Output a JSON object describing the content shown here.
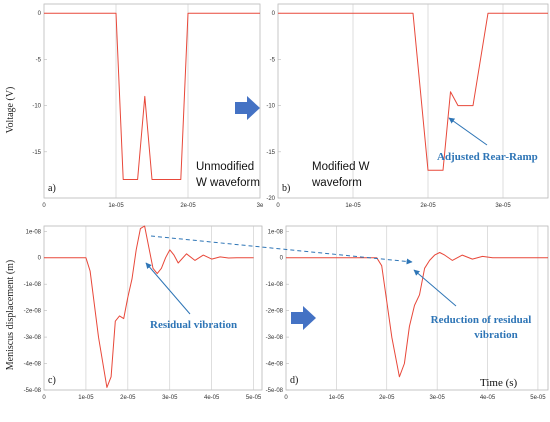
{
  "figure": {
    "y_label_top": "Voltage (V)",
    "y_label_bottom": "Meniscus displacement (m)",
    "time_label": "Time (s)",
    "colors": {
      "curve": "#e8483a",
      "accent": "#2e75b6",
      "frame": "#b8b8b8"
    }
  },
  "chart_data": [
    {
      "id": "a",
      "type": "line",
      "panel_label": "a)",
      "annotation_lines": [
        "Unmodified",
        "W waveform"
      ],
      "xlim": [
        0,
        3e-05
      ],
      "ylim": [
        -20,
        1
      ],
      "x_ticks": [
        "0",
        "1e-05",
        "2e-05",
        "3e"
      ],
      "y_ticks": [
        "0",
        "-5",
        "-10",
        "-15"
      ],
      "series": [
        {
          "x": [
            0,
            1e-05,
            1.1e-05,
            1.3e-05,
            1.4e-05,
            1.5e-05,
            1.6e-05,
            1.7e-05,
            1.9e-05,
            2e-05,
            3e-05
          ],
          "y": [
            0,
            0,
            -18,
            -18,
            -9,
            -18,
            -18,
            -18,
            -18,
            0,
            0
          ]
        }
      ]
    },
    {
      "id": "b",
      "type": "line",
      "panel_label": "b)",
      "annotation_lines": [
        "Modified W",
        "waveform"
      ],
      "blue_annotation": "Adjusted Rear-Ramp",
      "xlim": [
        0,
        3.6e-05
      ],
      "ylim": [
        -20,
        1
      ],
      "x_ticks": [
        "0",
        "1e-05",
        "2e-05",
        "3e-05"
      ],
      "y_ticks": [
        "0",
        "-5",
        "-10",
        "-15",
        "-20"
      ],
      "series": [
        {
          "x": [
            0,
            1.8e-05,
            2e-05,
            2.2e-05,
            2.3e-05,
            2.4e-05,
            2.6e-05,
            2.8e-05,
            3.6e-05
          ],
          "y": [
            0,
            0,
            -17,
            -17,
            -8.5,
            -10,
            -10,
            0,
            0
          ]
        }
      ]
    },
    {
      "id": "c",
      "type": "line",
      "panel_label": "c)",
      "blue_annotation": "Residual vibration",
      "xlim": [
        0,
        5.2e-05
      ],
      "ylim": [
        -5e-08,
        1.2e-08
      ],
      "x_ticks": [
        "0",
        "1e-05",
        "2e-05",
        "3e-05",
        "4e-05",
        "5e-05"
      ],
      "y_ticks": [
        "1e-08",
        "0",
        "-1e-08",
        "-2e-08",
        "-3e-08",
        "-4e-08",
        "-5e-08"
      ],
      "series": [
        {
          "x": [
            0,
            1e-05,
            1.1e-05,
            1.3e-05,
            1.5e-05,
            1.6e-05,
            1.7e-05,
            1.8e-05,
            1.9e-05,
            2e-05,
            2.1e-05,
            2.2e-05,
            2.3e-05,
            2.4e-05,
            2.5e-05,
            2.6e-05,
            2.7e-05,
            2.8e-05,
            2.9e-05,
            3e-05,
            3.1e-05,
            3.2e-05,
            3.4e-05,
            3.6e-05,
            3.8e-05,
            4e-05,
            4.2e-05,
            4.4e-05,
            4.6e-05,
            4.8e-05,
            5e-05
          ],
          "y": [
            0,
            0,
            -5e-09,
            -3e-08,
            -4.9e-08,
            -4.5e-08,
            -2.4e-08,
            -2.2e-08,
            -2.3e-08,
            -1.5e-08,
            -8e-09,
            3e-09,
            1.1e-08,
            1.2e-08,
            4e-09,
            -4e-09,
            -6e-09,
            -4e-09,
            0,
            3e-09,
            1e-09,
            -2e-09,
            1.5e-09,
            -1e-09,
            1e-09,
            -5e-10,
            3e-10,
            -1e-10,
            0,
            0,
            0
          ]
        }
      ]
    },
    {
      "id": "d",
      "type": "line",
      "panel_label": "d)",
      "blue_annotation_lines": [
        "Reduction of residual",
        "vibration"
      ],
      "xlim": [
        0,
        5.2e-05
      ],
      "ylim": [
        -5e-08,
        1.2e-08
      ],
      "x_ticks": [
        "0",
        "1e-05",
        "2e-05",
        "3e-05",
        "4e-05",
        "5e-05"
      ],
      "y_ticks": [
        "1e-08",
        "0",
        "-1e-08",
        "-2e-08",
        "-3e-08",
        "-4e-08",
        "-5e-08"
      ],
      "series": [
        {
          "x": [
            0,
            1.8e-05,
            1.9e-05,
            2.1e-05,
            2.25e-05,
            2.35e-05,
            2.45e-05,
            2.55e-05,
            2.65e-05,
            2.75e-05,
            2.85e-05,
            2.95e-05,
            3.05e-05,
            3.15e-05,
            3.3e-05,
            3.5e-05,
            3.7e-05,
            3.9e-05,
            4.1e-05,
            4.4e-05,
            4.8e-05,
            5.2e-05
          ],
          "y": [
            0,
            0,
            -3e-09,
            -3e-08,
            -4.5e-08,
            -4e-08,
            -2.6e-08,
            -1.8e-08,
            -1.4e-08,
            -4e-09,
            -1e-09,
            1e-09,
            2e-09,
            1e-09,
            -1e-09,
            1e-09,
            -5e-10,
            5e-10,
            0,
            0,
            0,
            0
          ]
        }
      ]
    }
  ]
}
